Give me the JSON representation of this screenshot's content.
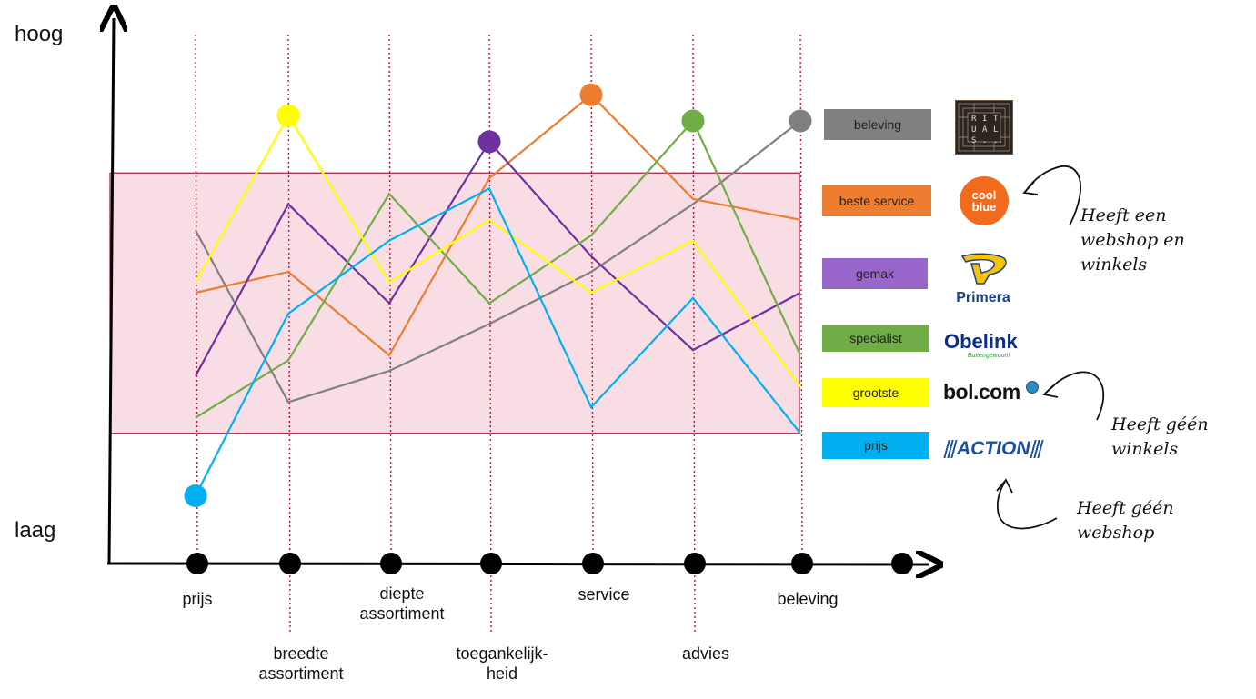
{
  "chart_data": {
    "type": "line",
    "y_axis": {
      "high_label": "hoog",
      "low_label": "laag"
    },
    "categories": [
      "prijs",
      "breedte\nassortiment",
      "diepte\nassortiment",
      "toegankelijk-\nheid",
      "service",
      "advies",
      "beleving"
    ],
    "ylim": [
      0,
      10
    ],
    "band": [
      2.5,
      7.5
    ],
    "series": [
      {
        "name": "beleving",
        "color": "#808080",
        "values": [
          6.4,
          3.1,
          3.7,
          4.6,
          5.6,
          6.9,
          8.5
        ],
        "marker_index": 6
      },
      {
        "name": "beste service",
        "color": "#ED7D31",
        "values": [
          5.2,
          5.6,
          4.0,
          7.4,
          9.0,
          7.0,
          6.6
        ],
        "marker_index": 4
      },
      {
        "name": "gemak",
        "color": "#7030A0",
        "values": [
          3.6,
          6.9,
          5.0,
          8.1,
          5.9,
          4.1,
          5.2
        ],
        "marker_index": 3
      },
      {
        "name": "specialist",
        "color": "#70AD47",
        "values": [
          2.8,
          3.9,
          7.1,
          5.0,
          6.3,
          8.5,
          4.0
        ],
        "marker_index": 5
      },
      {
        "name": "grootste",
        "color": "#FFFF00",
        "values": [
          5.4,
          8.6,
          5.4,
          6.6,
          5.2,
          6.2,
          3.4
        ],
        "marker_index": 1
      },
      {
        "name": "prijs",
        "color": "#00B0F0",
        "values": [
          1.3,
          4.8,
          6.2,
          7.2,
          3.0,
          5.1,
          2.5
        ],
        "marker_index": 0
      }
    ]
  },
  "legend": [
    {
      "label": "beleving",
      "color": "#808080",
      "logo": "rituals-logo"
    },
    {
      "label": "beste service",
      "color": "#ED7D31",
      "logo": "coolblue-logo"
    },
    {
      "label": "gemak",
      "color": "#9966CC",
      "logo": "primera-logo"
    },
    {
      "label": "specialist",
      "color": "#70AD47",
      "logo": "obelink-logo"
    },
    {
      "label": "grootste",
      "color": "#FFFF00",
      "logo": "bolcom-logo"
    },
    {
      "label": "prijs",
      "color": "#00B0F0",
      "logo": "action-logo"
    }
  ],
  "logos": {
    "rituals": "RITUALS...",
    "coolblue": "cool blue",
    "primera": "Primera",
    "obelink": "Obelink",
    "obelink_tag": "Buitengewoon!",
    "bolcom": "bol.com",
    "action": "ACTION"
  },
  "notes": {
    "webshop_and_stores": "Heeft een\nwebshop en\nwinkels",
    "no_stores": "Heeft géén\nwinkels",
    "no_webshop": "Heeft géén\nwebshop"
  }
}
